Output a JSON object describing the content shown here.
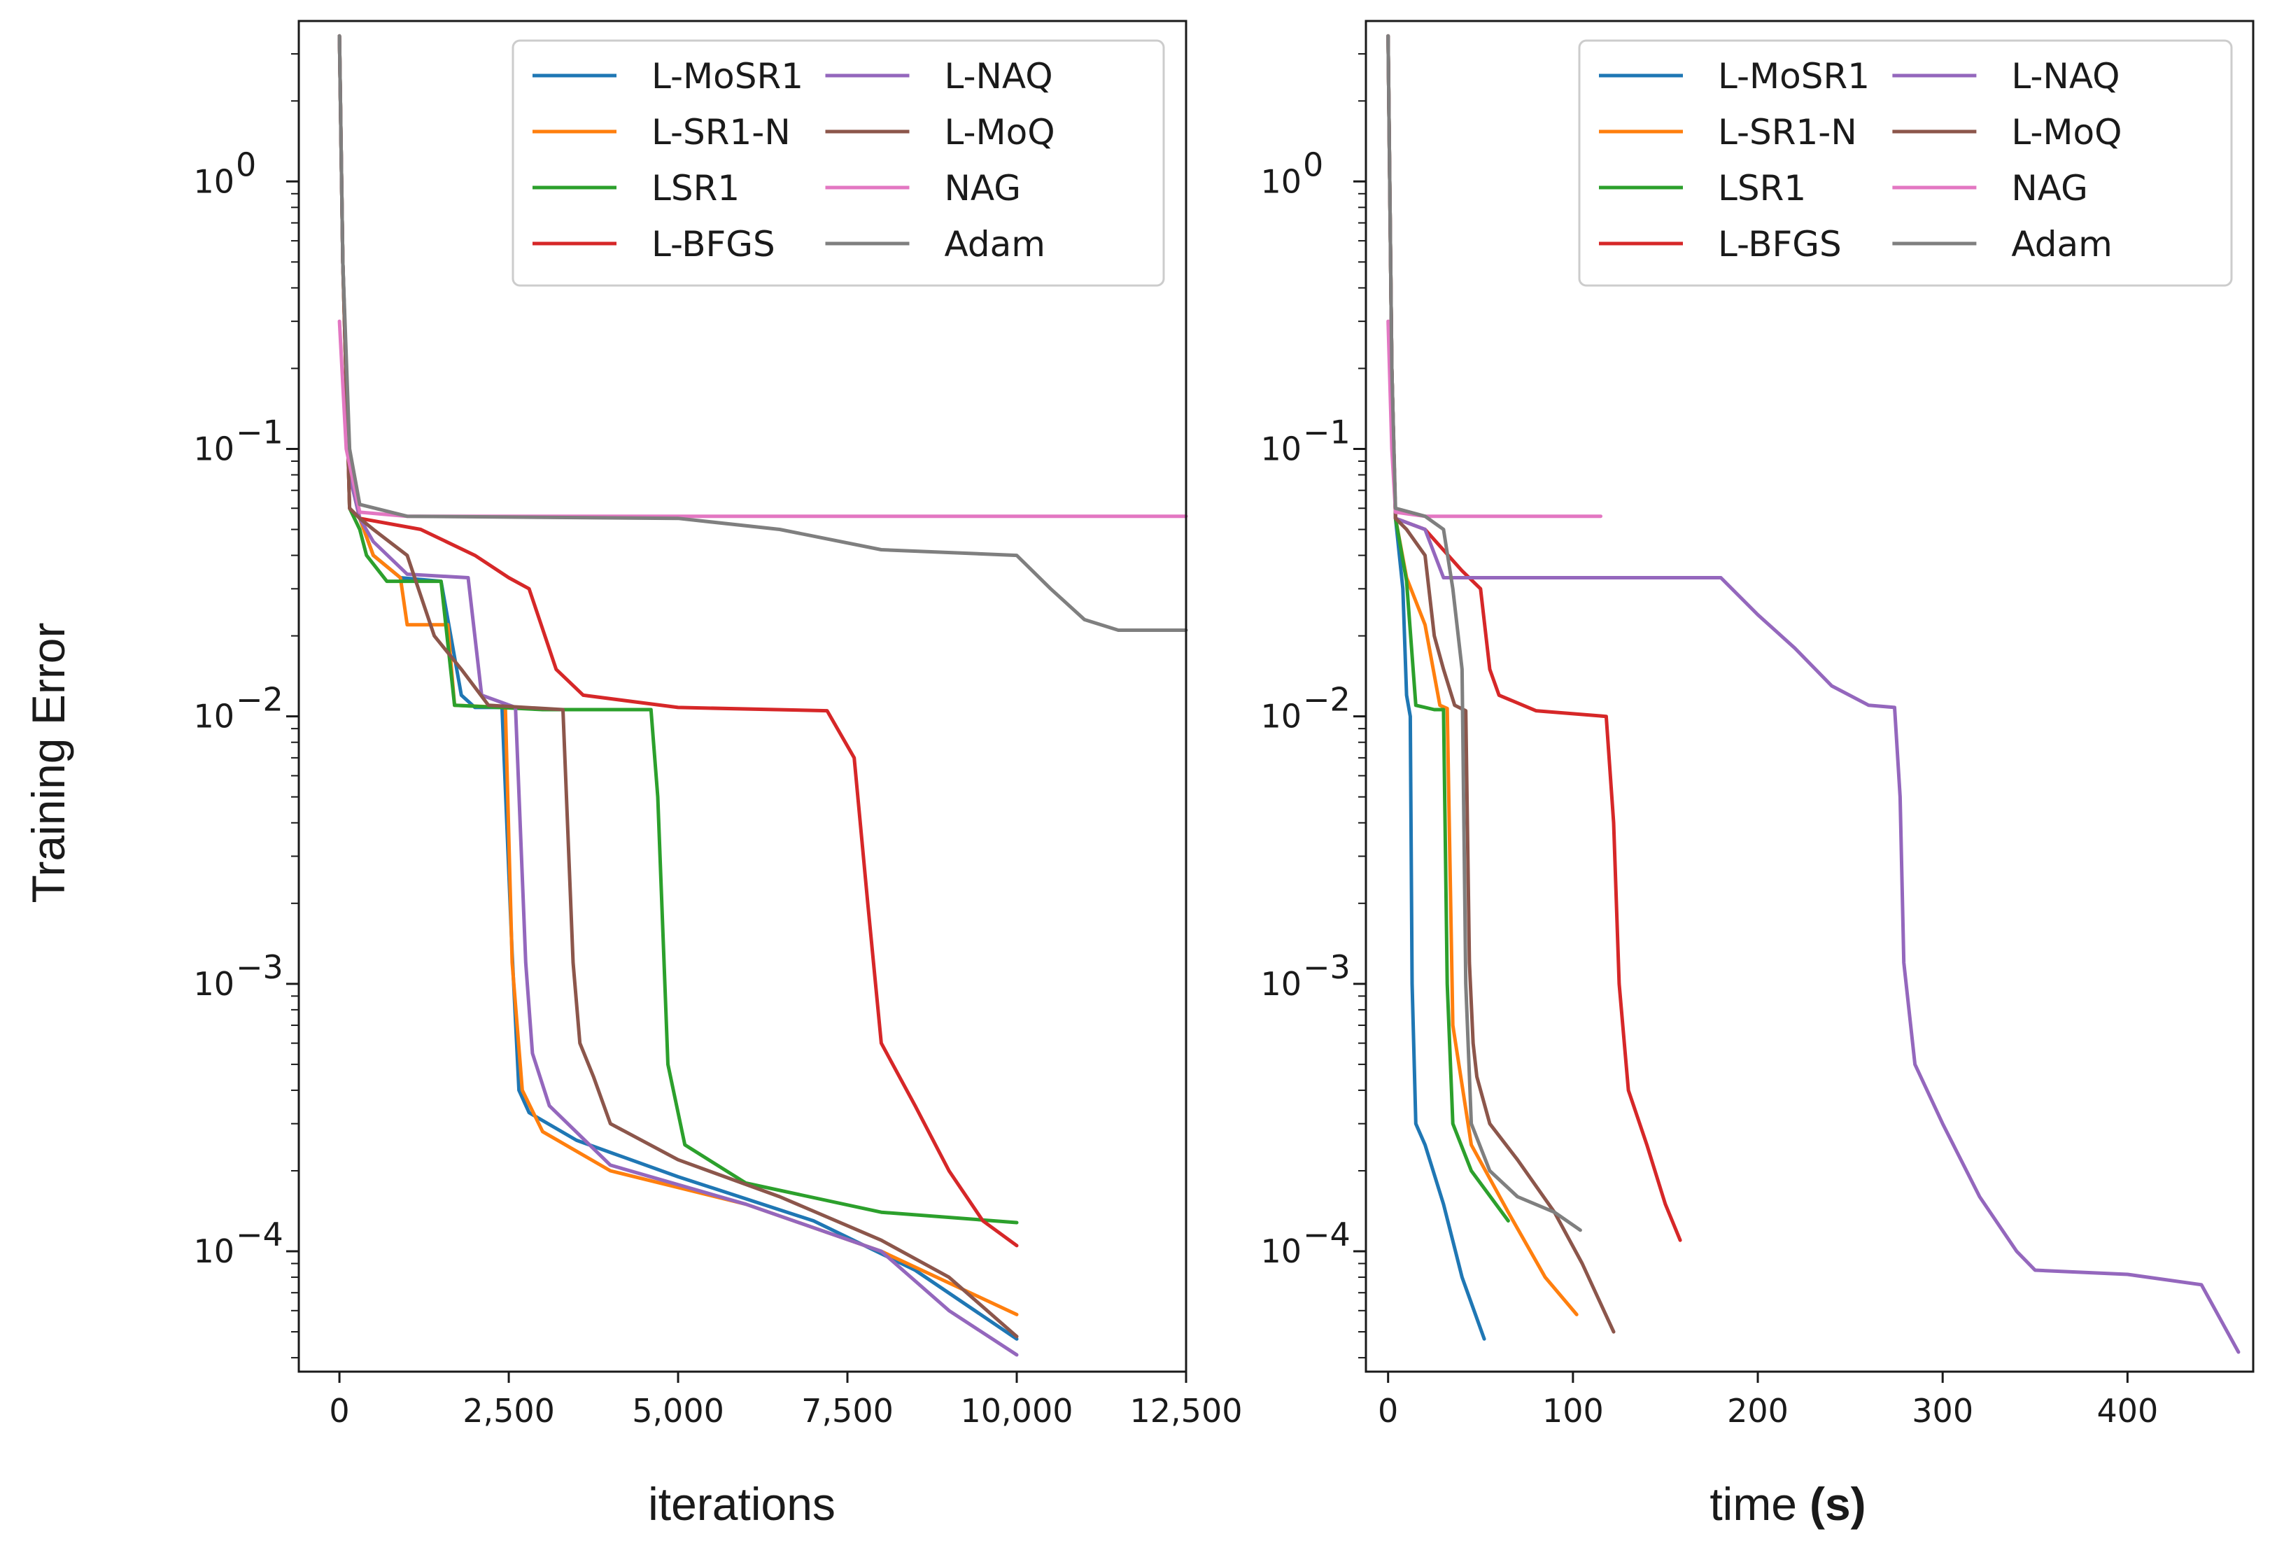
{
  "figure": {
    "ylabel": "Training Error"
  },
  "chart_data": [
    {
      "type": "line",
      "panel": "left",
      "title": "",
      "xlabel": "iterations",
      "ylabel": "Training Error",
      "xlim": [
        -600,
        12500
      ],
      "ylim_log10": [
        -4.45,
        0.6
      ],
      "yscale": "log",
      "xticks": [
        0,
        2500,
        5000,
        7500,
        10000,
        12500
      ],
      "xtick_labels": [
        "0",
        "2,500",
        "5,000",
        "7,500",
        "10,000",
        "12,500"
      ],
      "yticks_exp": [
        0,
        -1,
        -2,
        -3,
        -4
      ],
      "ytick_labels": [
        "10",
        "10",
        "10",
        "10",
        "10"
      ],
      "ytick_superscripts": [
        "0",
        "−1",
        "−2",
        "−3",
        "−4"
      ],
      "legend": {
        "position": "top-right",
        "columns": 2
      },
      "series": [
        {
          "name": "L-MoSR1",
          "color": "#1f77b4",
          "points": [
            [
              0,
              3.5
            ],
            [
              50,
              0.5
            ],
            [
              150,
              0.08
            ],
            [
              300,
              0.055
            ],
            [
              500,
              0.04
            ],
            [
              900,
              0.033
            ],
            [
              1500,
              0.032
            ],
            [
              1800,
              0.012
            ],
            [
              2000,
              0.0108
            ],
            [
              2400,
              0.0108
            ],
            [
              2550,
              0.0013
            ],
            [
              2650,
              0.0004
            ],
            [
              2800,
              0.00033
            ],
            [
              3500,
              0.00026
            ],
            [
              5000,
              0.00019
            ],
            [
              7000,
              0.00013
            ],
            [
              8500,
              8.5e-05
            ],
            [
              10000,
              4.7e-05
            ]
          ]
        },
        {
          "name": "L-SR1-N",
          "color": "#ff7f0e",
          "points": [
            [
              0,
              3.5
            ],
            [
              50,
              0.5
            ],
            [
              150,
              0.08
            ],
            [
              300,
              0.055
            ],
            [
              500,
              0.04
            ],
            [
              900,
              0.033
            ],
            [
              1000,
              0.022
            ],
            [
              1600,
              0.022
            ],
            [
              1700,
              0.011
            ],
            [
              2450,
              0.0108
            ],
            [
              2550,
              0.0012
            ],
            [
              2700,
              0.0004
            ],
            [
              3000,
              0.00028
            ],
            [
              4000,
              0.0002
            ],
            [
              6000,
              0.00015
            ],
            [
              8000,
              0.0001
            ],
            [
              10000,
              5.8e-05
            ]
          ]
        },
        {
          "name": "LSR1",
          "color": "#2ca02c",
          "points": [
            [
              0,
              3.5
            ],
            [
              50,
              0.5
            ],
            [
              150,
              0.06
            ],
            [
              300,
              0.05
            ],
            [
              400,
              0.04
            ],
            [
              700,
              0.032
            ],
            [
              1500,
              0.032
            ],
            [
              1700,
              0.011
            ],
            [
              3000,
              0.0106
            ],
            [
              4600,
              0.0106
            ],
            [
              4700,
              0.005
            ],
            [
              4850,
              0.0005
            ],
            [
              5100,
              0.00025
            ],
            [
              6000,
              0.00018
            ],
            [
              8000,
              0.00014
            ],
            [
              10000,
              0.000128
            ]
          ]
        },
        {
          "name": "L-BFGS",
          "color": "#d62728",
          "points": [
            [
              0,
              3.5
            ],
            [
              50,
              0.5
            ],
            [
              150,
              0.06
            ],
            [
              300,
              0.055
            ],
            [
              1200,
              0.05
            ],
            [
              2000,
              0.04
            ],
            [
              2500,
              0.033
            ],
            [
              2800,
              0.03
            ],
            [
              3200,
              0.015
            ],
            [
              3600,
              0.012
            ],
            [
              5000,
              0.0108
            ],
            [
              7200,
              0.0105
            ],
            [
              7600,
              0.007
            ],
            [
              7800,
              0.002
            ],
            [
              8000,
              0.0006
            ],
            [
              8500,
              0.00035
            ],
            [
              9000,
              0.0002
            ],
            [
              9500,
              0.00013
            ],
            [
              10000,
              0.000105
            ]
          ]
        },
        {
          "name": "L-NAQ",
          "color": "#9467bd",
          "points": [
            [
              0,
              3.5
            ],
            [
              50,
              0.5
            ],
            [
              150,
              0.08
            ],
            [
              300,
              0.055
            ],
            [
              500,
              0.045
            ],
            [
              1000,
              0.034
            ],
            [
              1900,
              0.033
            ],
            [
              2100,
              0.012
            ],
            [
              2600,
              0.0108
            ],
            [
              2750,
              0.0012
            ],
            [
              2850,
              0.00055
            ],
            [
              3100,
              0.00035
            ],
            [
              4000,
              0.00021
            ],
            [
              6000,
              0.00015
            ],
            [
              8000,
              0.0001
            ],
            [
              9000,
              6e-05
            ],
            [
              10000,
              4.1e-05
            ]
          ]
        },
        {
          "name": "L-MoQ",
          "color": "#8c564b",
          "points": [
            [
              0,
              3.5
            ],
            [
              50,
              0.5
            ],
            [
              150,
              0.06
            ],
            [
              300,
              0.055
            ],
            [
              500,
              0.05
            ],
            [
              1000,
              0.04
            ],
            [
              1400,
              0.02
            ],
            [
              1800,
              0.015
            ],
            [
              2200,
              0.011
            ],
            [
              3300,
              0.0106
            ],
            [
              3450,
              0.0012
            ],
            [
              3550,
              0.0006
            ],
            [
              3750,
              0.00045
            ],
            [
              4000,
              0.0003
            ],
            [
              5000,
              0.00022
            ],
            [
              6500,
              0.00016
            ],
            [
              8000,
              0.00011
            ],
            [
              9000,
              8e-05
            ],
            [
              10000,
              4.8e-05
            ]
          ]
        },
        {
          "name": "NAG",
          "color": "#e377c2",
          "points": [
            [
              0,
              0.3
            ],
            [
              100,
              0.1
            ],
            [
              300,
              0.058
            ],
            [
              1000,
              0.056
            ],
            [
              12500,
              0.056
            ]
          ]
        },
        {
          "name": "Adam",
          "color": "#7f7f7f",
          "points": [
            [
              0,
              3.5
            ],
            [
              50,
              0.5
            ],
            [
              150,
              0.1
            ],
            [
              300,
              0.062
            ],
            [
              1000,
              0.056
            ],
            [
              5000,
              0.055
            ],
            [
              6500,
              0.05
            ],
            [
              8000,
              0.042
            ],
            [
              10000,
              0.04
            ],
            [
              10500,
              0.03
            ],
            [
              11000,
              0.023
            ],
            [
              11500,
              0.021
            ],
            [
              12500,
              0.021
            ]
          ]
        }
      ]
    },
    {
      "type": "line",
      "panel": "right",
      "title": "",
      "xlabel": "time",
      "xlabel_unit": "(s)",
      "xlim": [
        -12,
        468
      ],
      "ylim_log10": [
        -4.45,
        0.6
      ],
      "yscale": "log",
      "xticks": [
        0,
        100,
        200,
        300,
        400
      ],
      "xtick_labels": [
        "0",
        "100",
        "200",
        "300",
        "400"
      ],
      "yticks_exp": [
        0,
        -1,
        -2,
        -3,
        -4
      ],
      "ytick_labels": [
        "10",
        "10",
        "10",
        "10",
        "10"
      ],
      "ytick_superscripts": [
        "0",
        "−1",
        "−2",
        "−3",
        "−4"
      ],
      "legend": {
        "position": "top-right",
        "columns": 2
      },
      "series": [
        {
          "name": "L-MoSR1",
          "color": "#1f77b4",
          "points": [
            [
              0,
              3.5
            ],
            [
              2,
              0.2
            ],
            [
              4,
              0.055
            ],
            [
              8,
              0.03
            ],
            [
              10,
              0.012
            ],
            [
              12,
              0.01
            ],
            [
              13,
              0.001
            ],
            [
              15,
              0.0003
            ],
            [
              20,
              0.00025
            ],
            [
              30,
              0.00015
            ],
            [
              40,
              8e-05
            ],
            [
              52,
              4.7e-05
            ]
          ]
        },
        {
          "name": "L-SR1-N",
          "color": "#ff7f0e",
          "points": [
            [
              0,
              3.5
            ],
            [
              2,
              0.2
            ],
            [
              4,
              0.055
            ],
            [
              10,
              0.033
            ],
            [
              20,
              0.022
            ],
            [
              28,
              0.011
            ],
            [
              32,
              0.0107
            ],
            [
              35,
              0.0007
            ],
            [
              45,
              0.00025
            ],
            [
              65,
              0.00014
            ],
            [
              85,
              8e-05
            ],
            [
              102,
              5.8e-05
            ]
          ]
        },
        {
          "name": "LSR1",
          "color": "#2ca02c",
          "points": [
            [
              0,
              3.5
            ],
            [
              2,
              0.2
            ],
            [
              4,
              0.055
            ],
            [
              10,
              0.032
            ],
            [
              15,
              0.011
            ],
            [
              25,
              0.0106
            ],
            [
              30,
              0.0106
            ],
            [
              32,
              0.001
            ],
            [
              35,
              0.0003
            ],
            [
              45,
              0.0002
            ],
            [
              65,
              0.00013
            ]
          ]
        },
        {
          "name": "L-BFGS",
          "color": "#d62728",
          "points": [
            [
              0,
              3.5
            ],
            [
              2,
              0.2
            ],
            [
              4,
              0.055
            ],
            [
              20,
              0.05
            ],
            [
              40,
              0.035
            ],
            [
              50,
              0.03
            ],
            [
              55,
              0.015
            ],
            [
              60,
              0.012
            ],
            [
              80,
              0.0105
            ],
            [
              118,
              0.01
            ],
            [
              122,
              0.004
            ],
            [
              125,
              0.001
            ],
            [
              130,
              0.0004
            ],
            [
              140,
              0.00025
            ],
            [
              150,
              0.00015
            ],
            [
              158,
              0.00011
            ]
          ]
        },
        {
          "name": "L-NAQ",
          "color": "#9467bd",
          "points": [
            [
              0,
              3.5
            ],
            [
              2,
              0.2
            ],
            [
              4,
              0.055
            ],
            [
              20,
              0.05
            ],
            [
              30,
              0.033
            ],
            [
              100,
              0.033
            ],
            [
              180,
              0.033
            ],
            [
              200,
              0.024
            ],
            [
              220,
              0.018
            ],
            [
              240,
              0.013
            ],
            [
              260,
              0.011
            ],
            [
              274,
              0.0108
            ],
            [
              277,
              0.005
            ],
            [
              279,
              0.0012
            ],
            [
              285,
              0.0005
            ],
            [
              300,
              0.0003
            ],
            [
              320,
              0.00016
            ],
            [
              340,
              0.0001
            ],
            [
              350,
              8.5e-05
            ],
            [
              400,
              8.2e-05
            ],
            [
              440,
              7.5e-05
            ],
            [
              460,
              4.2e-05
            ]
          ]
        },
        {
          "name": "L-MoQ",
          "color": "#8c564b",
          "points": [
            [
              0,
              3.5
            ],
            [
              2,
              0.2
            ],
            [
              4,
              0.055
            ],
            [
              10,
              0.05
            ],
            [
              20,
              0.04
            ],
            [
              25,
              0.02
            ],
            [
              30,
              0.015
            ],
            [
              36,
              0.011
            ],
            [
              42,
              0.0105
            ],
            [
              44,
              0.0012
            ],
            [
              46,
              0.0006
            ],
            [
              48,
              0.00045
            ],
            [
              55,
              0.0003
            ],
            [
              70,
              0.00022
            ],
            [
              90,
              0.00014
            ],
            [
              105,
              9e-05
            ],
            [
              122,
              5e-05
            ]
          ]
        },
        {
          "name": "NAG",
          "color": "#e377c2",
          "points": [
            [
              0,
              0.3
            ],
            [
              2,
              0.1
            ],
            [
              4,
              0.058
            ],
            [
              20,
              0.056
            ],
            [
              115,
              0.056
            ]
          ]
        },
        {
          "name": "Adam",
          "color": "#7f7f7f",
          "points": [
            [
              0,
              3.5
            ],
            [
              2,
              0.2
            ],
            [
              4,
              0.06
            ],
            [
              20,
              0.056
            ],
            [
              30,
              0.05
            ],
            [
              35,
              0.03
            ],
            [
              40,
              0.015
            ],
            [
              42,
              0.001
            ],
            [
              45,
              0.0003
            ],
            [
              55,
              0.0002
            ],
            [
              70,
              0.00016
            ],
            [
              90,
              0.00014
            ],
            [
              104,
              0.00012
            ]
          ]
        }
      ]
    }
  ]
}
